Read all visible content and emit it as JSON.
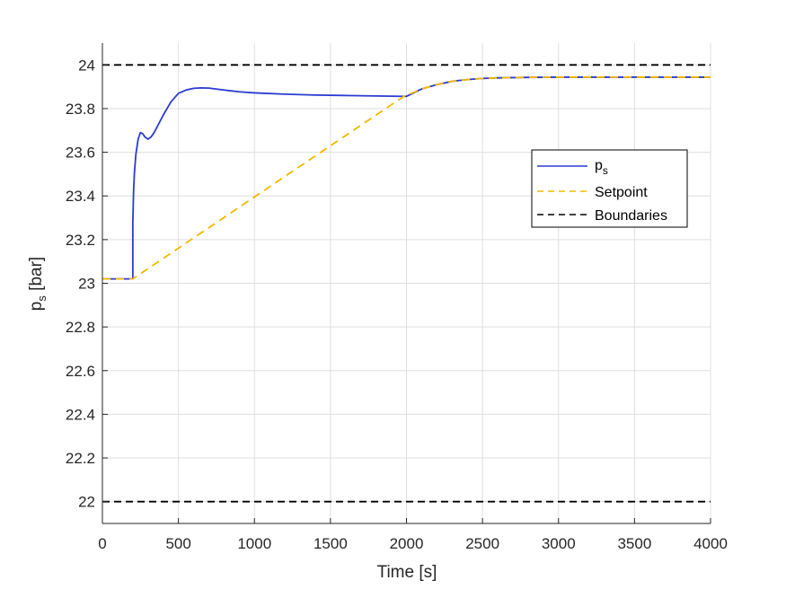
{
  "chart_data": {
    "type": "line",
    "xlabel": "Time [s]",
    "ylabel": {
      "base": "p",
      "sub": "s",
      "unit": " [bar]"
    },
    "xlim": [
      0,
      4000
    ],
    "ylim": [
      21.9,
      24.1
    ],
    "xticks": [
      "0",
      "500",
      "1000",
      "1500",
      "2000",
      "2500",
      "3000",
      "3500",
      "4000"
    ],
    "yticks": [
      "22",
      "22.2",
      "22.4",
      "22.6",
      "22.8",
      "23",
      "23.2",
      "23.4",
      "23.6",
      "23.8",
      "24"
    ],
    "grid": true,
    "legend_position": "right",
    "series": [
      {
        "key": "ps",
        "name": "p",
        "name_sub": "s",
        "color": "#2b3bd1",
        "dash": "solid",
        "x": [
          0,
          200,
          200,
          205,
          210,
          220,
          235,
          250,
          265,
          280,
          300,
          320,
          340,
          370,
          400,
          450,
          500,
          550,
          600,
          650,
          700,
          800,
          900,
          1000,
          1200,
          1400,
          1600,
          1800,
          2000,
          2100,
          2200,
          2300,
          2400,
          2500,
          2600,
          2800,
          3000,
          3500,
          4000
        ],
        "y": [
          23.02,
          23.02,
          23.28,
          23.42,
          23.5,
          23.59,
          23.66,
          23.69,
          23.685,
          23.67,
          23.66,
          23.67,
          23.69,
          23.73,
          23.77,
          23.83,
          23.87,
          23.885,
          23.893,
          23.895,
          23.894,
          23.885,
          23.877,
          23.872,
          23.866,
          23.862,
          23.86,
          23.858,
          23.856,
          23.89,
          23.91,
          23.925,
          23.933,
          23.938,
          23.941,
          23.943,
          23.944,
          23.944,
          23.944
        ]
      },
      {
        "key": "setpoint",
        "name": "Setpoint",
        "color": "#f5b800",
        "dash": "dashed",
        "x": [
          0,
          200,
          1980,
          2050,
          2100,
          2200,
          2300,
          2400,
          2500,
          2600,
          2800,
          3000,
          3500,
          4000
        ],
        "y": [
          23.02,
          23.02,
          23.855,
          23.875,
          23.89,
          23.91,
          23.925,
          23.933,
          23.938,
          23.941,
          23.943,
          23.944,
          23.944,
          23.944
        ]
      },
      {
        "key": "upper",
        "name": "Boundaries",
        "color": "#000000",
        "dash": "dashed",
        "x": [
          0,
          4000
        ],
        "y": [
          24,
          24
        ]
      },
      {
        "key": "lower",
        "name": "Boundaries",
        "color": "#000000",
        "dash": "dashed",
        "x": [
          0,
          4000
        ],
        "y": [
          22,
          22
        ]
      }
    ],
    "legend": [
      {
        "series": "ps",
        "label": "p",
        "label_sub": "s"
      },
      {
        "series": "setpoint",
        "label": "Setpoint"
      },
      {
        "series": "upper",
        "label": "Boundaries"
      }
    ]
  }
}
